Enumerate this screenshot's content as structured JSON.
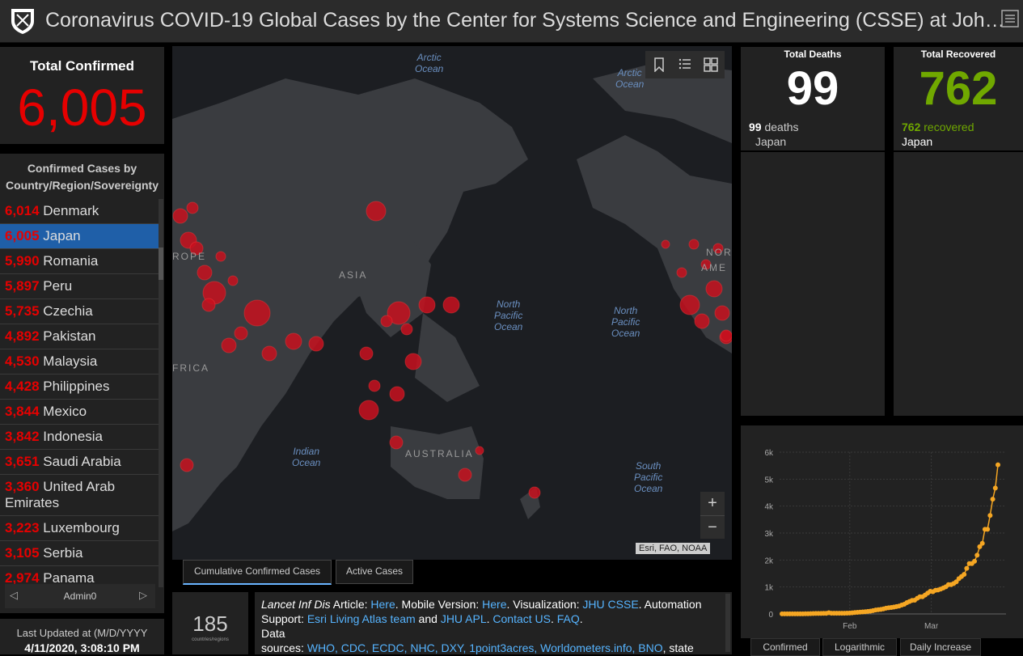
{
  "header": {
    "title": "Coronavirus COVID-19 Global Cases by the Center for Systems Science and Engineering (CSSE) at Joh…"
  },
  "total_confirmed": {
    "label": "Total Confirmed",
    "value": "6,005"
  },
  "country_panel": {
    "title_line1": "Confirmed Cases by",
    "title_line2": "Country/Region/Sovereignty",
    "items": [
      {
        "count": "6,014",
        "name": "Denmark"
      },
      {
        "count": "6,005",
        "name": "Japan",
        "selected": true
      },
      {
        "count": "5,990",
        "name": "Romania"
      },
      {
        "count": "5,897",
        "name": "Peru"
      },
      {
        "count": "5,735",
        "name": "Czechia"
      },
      {
        "count": "4,892",
        "name": "Pakistan"
      },
      {
        "count": "4,530",
        "name": "Malaysia"
      },
      {
        "count": "4,428",
        "name": "Philippines"
      },
      {
        "count": "3,844",
        "name": "Mexico"
      },
      {
        "count": "3,842",
        "name": "Indonesia"
      },
      {
        "count": "3,651",
        "name": "Saudi Arabia"
      },
      {
        "count": "3,360",
        "name": "United Arab Emirates"
      },
      {
        "count": "3,223",
        "name": "Luxembourg"
      },
      {
        "count": "3,105",
        "name": "Serbia"
      },
      {
        "count": "2,974",
        "name": "Panama"
      }
    ],
    "footer_label": "Admin0",
    "prev": "◁",
    "next": "▷"
  },
  "last_updated": {
    "label": "Last Updated at (M/D/YYYY",
    "value": "4/11/2020, 3:08:10 PM"
  },
  "map": {
    "labels": {
      "arctic1": "Arctic\nOcean",
      "arctic2": "Arctic\nOcean",
      "npo1": "North\nPacific\nOcean",
      "npo2": "North\nPacific\nOcean",
      "indian": "Indian\nOcean",
      "spo": "South\nPacific\nOcean",
      "europe": "ROPE",
      "asia": "ASIA",
      "africa": "FRICA",
      "australia": "AUSTRALIA",
      "nor": "NOR",
      "ame": "AME"
    },
    "zoom_in": "+",
    "zoom_out": "−",
    "attribution": "Esri, FAO, NOAA"
  },
  "map_tabs": {
    "cumulative": "Cumulative Confirmed Cases",
    "active": "Active Cases"
  },
  "count_box": {
    "value": "185",
    "label": "countries/regions"
  },
  "info": {
    "t1": "Lancet Inf Dis",
    "t2": " Article: ",
    "l1": "Here",
    "t3": ". Mobile Version: ",
    "l2": "Here",
    "t4": ". Visualization: ",
    "l3": "JHU CSSE",
    "t5": ". Automation Support: ",
    "l4": "Esri Living Atlas team",
    "t6": " and ",
    "l5": "JHU APL",
    "t7": ". ",
    "l6": "Contact US",
    "t8": ". ",
    "l7": "FAQ",
    "t9": ".",
    "t10": "Data",
    "t11": "sources: ",
    "l8": "WHO, CDC, ECDC, NHC, DXY, 1point3acres, Worldometers.info, BNO",
    "t12": ", state"
  },
  "deaths": {
    "label": "Total Deaths",
    "value": "99",
    "sub_num": "99",
    "sub_text": " deaths",
    "sub_place": "Japan"
  },
  "recovered": {
    "label": "Total Recovered",
    "value": "762",
    "sub_num": "762",
    "sub_text": " recovered",
    "sub_place": "Japan"
  },
  "chart_tabs": {
    "confirmed": "Confirmed",
    "log": "Logarithmic",
    "daily": "Daily Increase"
  },
  "colors": {
    "confirmed_red": "#e60000",
    "recovered_green": "#70a800",
    "link_blue": "#56b4ff",
    "chart_orange": "#f5a623"
  },
  "chart_data": {
    "type": "line",
    "title": "",
    "xlabel": "",
    "ylabel": "",
    "x_ticks": [
      "Feb",
      "Mar"
    ],
    "y_ticks": [
      "0",
      "1k",
      "2k",
      "3k",
      "4k",
      "5k",
      "6k"
    ],
    "ylim": [
      0,
      6000
    ],
    "grid": true,
    "series": [
      {
        "values": [
          2,
          2,
          2,
          2,
          2,
          2,
          2,
          4,
          4,
          7,
          7,
          11,
          15,
          20,
          20,
          20,
          22,
          22,
          45,
          25,
          25,
          26,
          26,
          26,
          28,
          29,
          33,
          41,
          53,
          59,
          66,
          74,
          84,
          94,
          105,
          122,
          147,
          159,
          170,
          189,
          214,
          228,
          241,
          256,
          274,
          293,
          331,
          360,
          420,
          461,
          502,
          511,
          581,
          639,
          639,
          701,
          773,
          839,
          825,
          878,
          889,
          924,
          963,
          1007,
          1086,
          1086,
          1128,
          1193,
          1307,
          1387,
          1468,
          1693,
          1866,
          1866,
          1953,
          2178,
          2495,
          2617,
          3139,
          3139,
          3654,
          4257,
          4667,
          5530
        ]
      }
    ]
  }
}
